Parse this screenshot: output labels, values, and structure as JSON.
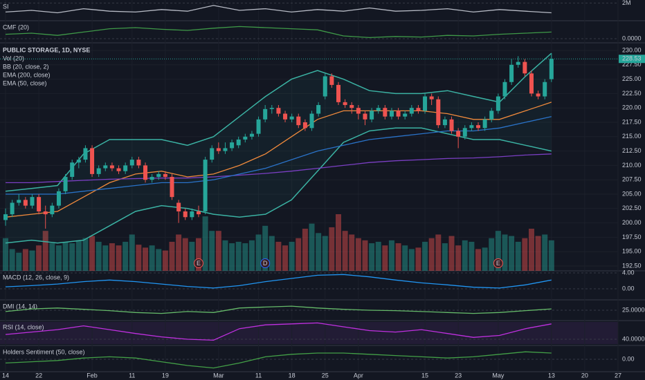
{
  "chart_data": {
    "type": "candlestick",
    "title": "PUBLIC STORAGE, 1D, NYSE",
    "categories": [
      "14",
      null,
      null,
      null,
      null,
      "22",
      null,
      null,
      null,
      null,
      null,
      null,
      null,
      "Feb",
      null,
      null,
      null,
      null,
      null,
      "11",
      null,
      null,
      null,
      null,
      "19",
      null,
      null,
      null,
      null,
      null,
      null,
      null,
      "Mar",
      null,
      null,
      null,
      null,
      null,
      "11",
      null,
      null,
      null,
      null,
      "18",
      null,
      null,
      null,
      null,
      "25",
      null,
      null,
      null,
      null,
      "Apr",
      null,
      null,
      null,
      null,
      null,
      null,
      null,
      null,
      null,
      "15",
      null,
      null,
      null,
      null,
      "23",
      null,
      null,
      null,
      null,
      null,
      "May",
      null,
      null,
      null,
      null,
      null,
      null,
      null,
      "13"
    ],
    "future_labels": [
      "20",
      "27"
    ],
    "open": [
      200.5,
      201.5,
      203.5,
      204,
      203,
      204.5,
      202,
      201.5,
      203,
      205.5,
      208,
      210.5,
      211,
      213,
      208.5,
      209.5,
      210,
      209.5,
      209,
      210,
      211,
      210,
      207.5,
      208,
      208.5,
      208,
      203.5,
      202,
      201,
      202,
      202,
      211,
      213,
      212.5,
      213,
      213.5,
      214.5,
      215,
      215.5,
      218,
      219.8,
      220,
      219,
      218,
      218.5,
      217.5,
      216.5,
      219,
      222,
      225.5,
      224,
      221,
      220.5,
      220,
      219,
      218,
      219.5,
      220,
      218.5,
      219.5,
      218.5,
      219,
      220,
      219.5,
      222,
      221.5,
      217,
      218,
      216,
      215,
      216.5,
      217,
      216.5,
      218,
      219.5,
      222,
      224.5,
      227.5,
      228,
      226,
      222.5,
      222,
      225
    ],
    "high": [
      202.5,
      204,
      205,
      204.5,
      205,
      205,
      203,
      203.5,
      206,
      208.5,
      211,
      211.5,
      213.5,
      213.5,
      210,
      210.5,
      210.5,
      210,
      210.5,
      211.5,
      211.5,
      210.5,
      208.5,
      209,
      209,
      208.5,
      204,
      202.5,
      202.5,
      203,
      211.5,
      213.5,
      214,
      214,
      214.5,
      215,
      215.5,
      216,
      218.5,
      220.5,
      220.5,
      220.5,
      219.5,
      219,
      219,
      218,
      219.5,
      221,
      226,
      226,
      224.5,
      221.5,
      221,
      220.5,
      219.5,
      220,
      220.5,
      220.5,
      220,
      220,
      219.5,
      220.5,
      220.5,
      222.5,
      222.5,
      222,
      218.5,
      218.5,
      216.5,
      217,
      217.5,
      217.5,
      218.5,
      220,
      222.5,
      225,
      228.5,
      229,
      228.5,
      226.5,
      223,
      225,
      229.5
    ],
    "low": [
      199.5,
      201,
      203,
      202.5,
      202.5,
      201.5,
      199,
      201,
      202.5,
      205,
      207.5,
      209.5,
      210.5,
      208,
      208,
      209,
      209,
      208.5,
      208.5,
      209.5,
      209.5,
      207,
      207,
      207.5,
      207.5,
      204,
      200,
      200.5,
      200.5,
      201,
      201.5,
      210.5,
      212,
      212,
      212.5,
      213,
      214,
      214.5,
      215,
      217.5,
      219,
      218.5,
      217.5,
      217.5,
      216.5,
      216,
      216,
      218.5,
      221.5,
      223.5,
      220.5,
      220,
      219,
      218,
      217,
      217.5,
      219,
      218,
      218,
      218,
      218,
      218.5,
      219,
      219,
      220.5,
      216.5,
      216.5,
      215.5,
      213,
      214.5,
      216,
      216,
      216,
      217.5,
      219,
      221.5,
      224,
      227,
      225.5,
      222,
      221.5,
      221.5,
      224.5
    ],
    "close": [
      201.5,
      203.5,
      204,
      203,
      204.5,
      202,
      201.5,
      203,
      205.5,
      208,
      210.5,
      211,
      213,
      208.5,
      209.5,
      210,
      209.5,
      209,
      210,
      211,
      210,
      207.5,
      208,
      208.5,
      208,
      204.5,
      202,
      201,
      202,
      201.5,
      211,
      213,
      212.5,
      213,
      214,
      214.5,
      215,
      215.5,
      218,
      219.8,
      220,
      219,
      218,
      218.5,
      217,
      216.5,
      219,
      220.5,
      225.5,
      224,
      221,
      220.5,
      220,
      219,
      218,
      219.5,
      220,
      218.5,
      219.5,
      218.5,
      219,
      220,
      219.5,
      222,
      221.5,
      217,
      218,
      216,
      215,
      216.5,
      217,
      216.5,
      218,
      219.5,
      222,
      224.5,
      227.5,
      228,
      226,
      222.5,
      222,
      224.5,
      228.53
    ],
    "up_color": "#26a69a",
    "down_color": "#ef5350",
    "volume": {
      "name": "Vol (20)",
      "values": [
        45,
        30,
        25,
        30,
        28,
        35,
        55,
        38,
        35,
        40,
        38,
        42,
        45,
        48,
        40,
        35,
        38,
        35,
        40,
        50,
        36,
        32,
        35,
        30,
        28,
        40,
        50,
        45,
        40,
        45,
        75,
        55,
        55,
        42,
        38,
        40,
        38,
        42,
        50,
        62,
        48,
        40,
        35,
        40,
        45,
        58,
        65,
        52,
        48,
        60,
        78,
        55,
        50,
        45,
        42,
        38,
        40,
        35,
        42,
        38,
        35,
        30,
        32,
        40,
        45,
        50,
        38,
        48,
        35,
        42,
        40,
        30,
        32,
        45,
        55,
        50,
        48,
        40,
        45,
        58,
        48,
        50,
        42
      ]
    },
    "events": [
      null,
      null,
      null,
      null,
      null,
      null,
      null,
      null,
      null,
      null,
      null,
      null,
      null,
      null,
      null,
      null,
      null,
      null,
      null,
      null,
      null,
      null,
      null,
      null,
      null,
      null,
      null,
      null,
      null,
      "E",
      null,
      null,
      null,
      null,
      null,
      null,
      null,
      null,
      null,
      "D",
      null,
      null,
      null,
      null,
      null,
      null,
      null,
      null,
      null,
      null,
      null,
      null,
      null,
      null,
      null,
      null,
      null,
      null,
      null,
      null,
      null,
      null,
      null,
      null,
      null,
      null,
      null,
      null,
      null,
      null,
      null,
      null,
      null,
      null,
      "E",
      null,
      null,
      null,
      null,
      null,
      null,
      null,
      null
    ],
    "overlays": [
      {
        "name": "BB (20, close, 2)",
        "color": "#3bb3a4",
        "basis_color": "#f08a3c",
        "upper": [
          205.5,
          206,
          206.5,
          212,
          214.5,
          214.5,
          214.5,
          213.5,
          215,
          218.5,
          222,
          225,
          226.5,
          225,
          223,
          222.5,
          222.5,
          223,
          222,
          221,
          225.5,
          229.5
        ],
        "basis": [
          201,
          201.5,
          202,
          204.5,
          207,
          208.5,
          209,
          208,
          208.5,
          210,
          212,
          215,
          218,
          219.5,
          219.5,
          219.5,
          219.5,
          219,
          218,
          218,
          219.5,
          221
        ],
        "lower": [
          196.5,
          197,
          196.5,
          197,
          199.5,
          202,
          203,
          202.5,
          201.5,
          201,
          201.5,
          204,
          209,
          214,
          216,
          216.5,
          216.5,
          215.5,
          214.5,
          214.5,
          213.5,
          212.5
        ]
      },
      {
        "name": "EMA (200, close)",
        "color": "#7b3fc4",
        "values": [
          207,
          207,
          207.2,
          207.4,
          207.6,
          207.7,
          207.8,
          207.8,
          208,
          208.3,
          208.6,
          209,
          209.5,
          210,
          210.5,
          210.8,
          211,
          211.2,
          211.3,
          211.5,
          211.8,
          212
        ]
      },
      {
        "name": "EMA (50, close)",
        "color": "#2a73c9",
        "values": [
          205,
          205,
          205,
          205.5,
          206,
          206.5,
          207,
          207,
          207.5,
          208.5,
          209.5,
          211,
          212.5,
          213.5,
          214.5,
          215,
          215.5,
          216,
          216,
          216.5,
          217.5,
          218.5
        ]
      }
    ],
    "ylim": [
      191.66,
      230.84
    ],
    "yticks": [
      {
        "value": 192.5,
        "label": "192.50"
      },
      {
        "value": 195,
        "label": "195.00"
      },
      {
        "value": 197.5,
        "label": "197.50"
      },
      {
        "value": 200,
        "label": "200.00"
      },
      {
        "value": 202.5,
        "label": "202.50"
      },
      {
        "value": 205,
        "label": "205.00"
      },
      {
        "value": 207.5,
        "label": "207.50"
      },
      {
        "value": 210,
        "label": "210.00"
      },
      {
        "value": 212.5,
        "label": "212.50"
      },
      {
        "value": 215,
        "label": "215.00"
      },
      {
        "value": 217.5,
        "label": "217.50"
      },
      {
        "value": 220,
        "label": "220.00"
      },
      {
        "value": 222.5,
        "label": "222.50"
      },
      {
        "value": 225,
        "label": "225.00"
      },
      {
        "value": 227.5,
        "label": "227.50"
      },
      {
        "value": 230,
        "label": "230.00"
      }
    ],
    "grid": true,
    "panels": [
      {
        "name": "SI",
        "color": "#b8bcc6",
        "ylim": [
          0,
          2200000
        ],
        "yticks": [
          {
            "value": 2000000,
            "label": "2M"
          }
        ],
        "values": [
          900000,
          1100000,
          800000,
          1300000,
          1000000,
          900000,
          1200000,
          1000000,
          1700000,
          1100000,
          1300000,
          900000,
          1200000,
          1000000,
          1400000,
          1000000,
          1100000,
          1300000,
          900000,
          1200000,
          1000000,
          800000
        ]
      },
      {
        "name": "CMF (20)",
        "color": "#3f9a48",
        "ylim": [
          -0.05,
          0.3
        ],
        "yticks": [
          {
            "value": 0,
            "label": "0.0000"
          }
        ],
        "values": [
          0.08,
          0.1,
          0.06,
          0.12,
          0.18,
          0.2,
          0.17,
          0.15,
          0.19,
          0.22,
          0.2,
          0.18,
          0.16,
          0.05,
          0.02,
          0.04,
          0.03,
          0.06,
          0.05,
          0.08,
          0.1,
          0.12
        ]
      },
      {
        "name": "MACD (12, 26, close, 9)",
        "color": "#2196f3",
        "ylim": [
          -2.43,
          4.17
        ],
        "yticks": [
          {
            "value": 4,
            "label": "4.00"
          },
          {
            "value": 0,
            "label": "0.00"
          }
        ],
        "values": [
          0.5,
          0.8,
          1.2,
          1.8,
          2.2,
          1.8,
          1.2,
          0.6,
          0.2,
          0.8,
          1.8,
          2.6,
          3.4,
          3.6,
          3.0,
          2.2,
          1.5,
          1.0,
          0.4,
          0.2,
          1.0,
          2.2
        ]
      },
      {
        "name": "DMI (14, 14)",
        "color": "#66bb6a",
        "ylim": [
          5,
          45
        ],
        "yticks": [
          {
            "value": 25,
            "label": "25.0000"
          }
        ],
        "values": [
          22,
          28,
          30,
          27,
          24,
          20,
          18,
          22,
          20,
          30,
          32,
          34,
          30,
          27,
          25,
          24,
          22,
          20,
          18,
          20,
          24,
          28
        ]
      },
      {
        "name": "RSI (14, close)",
        "color": "#c030e0",
        "ylim": [
          30,
          76
        ],
        "yticks": [
          {
            "value": 40,
            "label": "40.0000"
          }
        ],
        "values": [
          50,
          55,
          60,
          68,
          60,
          52,
          45,
          40,
          38,
          62,
          70,
          72,
          74,
          66,
          58,
          55,
          60,
          52,
          44,
          48,
          62,
          72
        ]
      },
      {
        "name": "Holders Sentiment (50, close)",
        "color": "#43a047",
        "ylim": [
          -1,
          1
        ],
        "yticks": [
          {
            "value": 0,
            "label": "0.00"
          }
        ],
        "values": [
          -0.3,
          -0.2,
          -0.1,
          0.1,
          0.2,
          0.1,
          -0.2,
          -0.5,
          -0.7,
          -0.3,
          0.2,
          0.4,
          0.5,
          0.5,
          0.4,
          0.3,
          0.2,
          0.1,
          0.2,
          0.4,
          0.6,
          0.5
        ]
      }
    ]
  }
}
